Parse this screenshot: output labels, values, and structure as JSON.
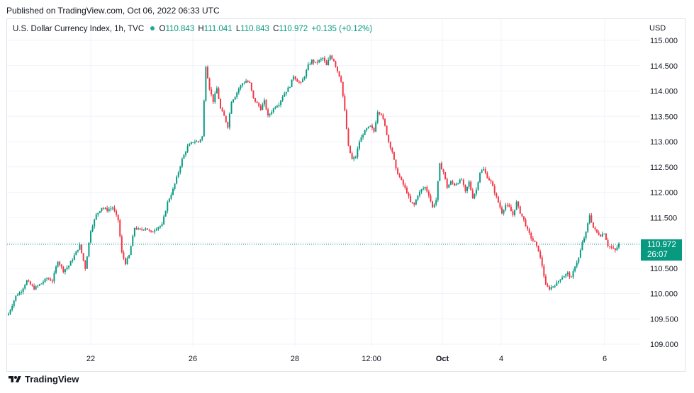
{
  "header": {
    "published": "Published on TradingView.com, Oct 06, 2022 06:33 UTC"
  },
  "legend": {
    "symbol": "U.S. Dollar Currency Index, 1h, TVC",
    "o_label": "O",
    "o_value": "110.843",
    "h_label": "H",
    "h_value": "111.041",
    "l_label": "L",
    "l_value": "110.843",
    "c_label": "C",
    "c_value": "110.972",
    "change": "+0.135 (+0.12%)"
  },
  "axis": {
    "currency": "USD"
  },
  "last_price": {
    "price": "110.972",
    "countdown": "26:07"
  },
  "footer": {
    "brand": "TradingView"
  },
  "colors": {
    "up": "#089981",
    "down": "#f23645",
    "grid": "#f0f3fa",
    "price_line": "#089981"
  },
  "chart_data": {
    "type": "candlestick",
    "ylim": [
      108.85,
      115.15
    ],
    "yticks": [
      "109.000",
      "109.500",
      "110.000",
      "110.500",
      "111.000",
      "111.500",
      "112.000",
      "112.500",
      "113.000",
      "113.500",
      "114.000",
      "114.500",
      "115.000"
    ],
    "xticks": [
      "22",
      "26",
      "28",
      "12:00",
      "Oct",
      "4",
      "6"
    ],
    "last_price": 110.972,
    "anchors": [
      [
        0,
        109.6
      ],
      [
        4,
        109.95
      ],
      [
        7,
        110.05
      ],
      [
        10,
        110.25
      ],
      [
        14,
        110.1
      ],
      [
        18,
        110.2
      ],
      [
        21,
        110.3
      ],
      [
        24,
        110.25
      ],
      [
        27,
        110.65
      ],
      [
        30,
        110.45
      ],
      [
        33,
        110.55
      ],
      [
        36,
        110.75
      ],
      [
        39,
        110.95
      ],
      [
        42,
        110.5
      ],
      [
        45,
        111.25
      ],
      [
        48,
        111.55
      ],
      [
        51,
        111.7
      ],
      [
        54,
        111.65
      ],
      [
        57,
        111.7
      ],
      [
        60,
        111.45
      ],
      [
        62,
        110.8
      ],
      [
        64,
        110.6
      ],
      [
        66,
        110.75
      ],
      [
        69,
        111.3
      ],
      [
        72,
        111.25
      ],
      [
        75,
        111.3
      ],
      [
        78,
        111.2
      ],
      [
        81,
        111.3
      ],
      [
        84,
        111.35
      ],
      [
        87,
        111.8
      ],
      [
        90,
        112.05
      ],
      [
        93,
        112.4
      ],
      [
        95,
        112.65
      ],
      [
        98,
        112.9
      ],
      [
        101,
        113.0
      ],
      [
        104,
        113.0
      ],
      [
        106,
        113.1
      ],
      [
        108,
        114.5
      ],
      [
        110,
        114.05
      ],
      [
        112,
        113.8
      ],
      [
        114,
        114.05
      ],
      [
        116,
        113.65
      ],
      [
        118,
        113.5
      ],
      [
        120,
        113.3
      ],
      [
        122,
        113.8
      ],
      [
        124,
        113.9
      ],
      [
        126,
        114.05
      ],
      [
        128,
        114.15
      ],
      [
        130,
        114.2
      ],
      [
        132,
        114.15
      ],
      [
        134,
        113.85
      ],
      [
        136,
        113.75
      ],
      [
        138,
        113.65
      ],
      [
        140,
        113.8
      ],
      [
        142,
        113.5
      ],
      [
        144,
        113.6
      ],
      [
        146,
        113.7
      ],
      [
        148,
        113.75
      ],
      [
        150,
        113.9
      ],
      [
        152,
        114.0
      ],
      [
        154,
        114.1
      ],
      [
        156,
        114.3
      ],
      [
        158,
        114.2
      ],
      [
        160,
        114.15
      ],
      [
        162,
        114.3
      ],
      [
        164,
        114.5
      ],
      [
        166,
        114.6
      ],
      [
        168,
        114.55
      ],
      [
        170,
        114.6
      ],
      [
        172,
        114.65
      ],
      [
        174,
        114.5
      ],
      [
        176,
        114.7
      ],
      [
        178,
        114.6
      ],
      [
        180,
        114.4
      ],
      [
        182,
        114.2
      ],
      [
        184,
        113.6
      ],
      [
        186,
        112.9
      ],
      [
        188,
        112.65
      ],
      [
        190,
        112.7
      ],
      [
        192,
        113.0
      ],
      [
        194,
        113.15
      ],
      [
        196,
        113.25
      ],
      [
        198,
        113.3
      ],
      [
        200,
        113.2
      ],
      [
        202,
        113.6
      ],
      [
        204,
        113.55
      ],
      [
        206,
        113.3
      ],
      [
        208,
        113.0
      ],
      [
        210,
        112.8
      ],
      [
        212,
        112.45
      ],
      [
        214,
        112.3
      ],
      [
        216,
        112.15
      ],
      [
        218,
        112.0
      ],
      [
        220,
        111.8
      ],
      [
        222,
        111.75
      ],
      [
        224,
        111.95
      ],
      [
        226,
        112.05
      ],
      [
        228,
        112.1
      ],
      [
        230,
        111.95
      ],
      [
        232,
        111.7
      ],
      [
        234,
        111.85
      ],
      [
        236,
        112.55
      ],
      [
        238,
        112.4
      ],
      [
        240,
        112.1
      ],
      [
        242,
        112.2
      ],
      [
        244,
        112.15
      ],
      [
        246,
        112.2
      ],
      [
        248,
        112.25
      ],
      [
        250,
        112.0
      ],
      [
        252,
        112.2
      ],
      [
        254,
        111.9
      ],
      [
        256,
        112.05
      ],
      [
        258,
        112.4
      ],
      [
        260,
        112.45
      ],
      [
        262,
        112.3
      ],
      [
        264,
        112.2
      ],
      [
        266,
        112.0
      ],
      [
        268,
        111.8
      ],
      [
        270,
        111.6
      ],
      [
        272,
        111.75
      ],
      [
        274,
        111.7
      ],
      [
        276,
        111.55
      ],
      [
        278,
        111.8
      ],
      [
        280,
        111.6
      ],
      [
        282,
        111.45
      ],
      [
        284,
        111.25
      ],
      [
        286,
        111.1
      ],
      [
        288,
        111.0
      ],
      [
        290,
        110.85
      ],
      [
        292,
        110.55
      ],
      [
        294,
        110.15
      ],
      [
        296,
        110.1
      ],
      [
        298,
        110.15
      ],
      [
        300,
        110.2
      ],
      [
        302,
        110.3
      ],
      [
        304,
        110.35
      ],
      [
        306,
        110.4
      ],
      [
        308,
        110.3
      ],
      [
        310,
        110.55
      ],
      [
        312,
        110.7
      ],
      [
        314,
        111.0
      ],
      [
        316,
        111.2
      ],
      [
        318,
        111.55
      ],
      [
        320,
        111.3
      ],
      [
        322,
        111.2
      ],
      [
        324,
        111.15
      ],
      [
        326,
        111.2
      ],
      [
        328,
        110.95
      ],
      [
        330,
        110.9
      ],
      [
        332,
        110.85
      ],
      [
        334,
        110.972
      ]
    ]
  }
}
